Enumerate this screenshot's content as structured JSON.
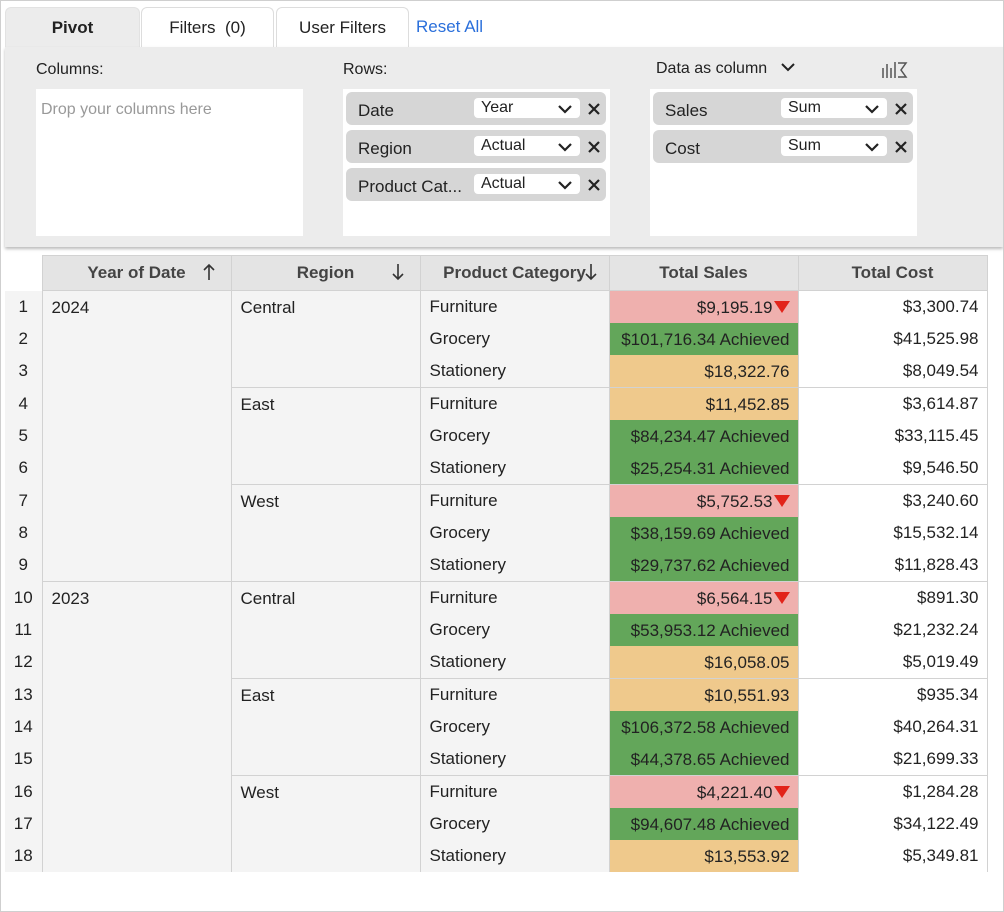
{
  "tabs": [
    "Pivot",
    "Filters  (0)",
    "User Filters"
  ],
  "reset": "Reset All",
  "config": {
    "columns_label": "Columns:",
    "columns_placeholder": "Drop your columns here",
    "rows_label": "Rows:",
    "rows": [
      {
        "field": "Date",
        "agg": "Year"
      },
      {
        "field": "Region",
        "agg": "Actual"
      },
      {
        "field": "Product Cat...",
        "agg": "Actual"
      }
    ],
    "values_label": "Data as column",
    "values": [
      {
        "field": "Sales",
        "agg": "Sum"
      },
      {
        "field": "Cost",
        "agg": "Sum"
      }
    ]
  },
  "table": {
    "headers": [
      "Year of Date",
      "Region",
      "Product Category",
      "Total Sales",
      "Total Cost"
    ],
    "rows": [
      {
        "n": "1",
        "year": "2024",
        "region": "Central",
        "category": "Furniture",
        "sales": "$9,195.19",
        "arrow": true,
        "color": "#efb0ae",
        "cost": "$3,300.74"
      },
      {
        "n": "2",
        "category": "Grocery",
        "sales": "$101,716.34",
        "status": "Achieved",
        "color": "#63a65a",
        "cost": "$41,525.98"
      },
      {
        "n": "3",
        "category": "Stationery",
        "sales": "$18,322.76",
        "color": "#efc98c",
        "cost": "$8,049.54"
      },
      {
        "n": "4",
        "region": "East",
        "category": "Furniture",
        "sales": "$11,452.85",
        "color": "#efc98c",
        "cost": "$3,614.87"
      },
      {
        "n": "5",
        "category": "Grocery",
        "sales": "$84,234.47",
        "status": "Achieved",
        "color": "#63a65a",
        "cost": "$33,115.45"
      },
      {
        "n": "6",
        "category": "Stationery",
        "sales": "$25,254.31",
        "status": "Achieved",
        "color": "#63a65a",
        "cost": "$9,546.50"
      },
      {
        "n": "7",
        "region": "West",
        "category": "Furniture",
        "sales": "$5,752.53",
        "arrow": true,
        "color": "#efb0ae",
        "cost": "$3,240.60"
      },
      {
        "n": "8",
        "category": "Grocery",
        "sales": "$38,159.69",
        "status": "Achieved",
        "color": "#63a65a",
        "cost": "$15,532.14"
      },
      {
        "n": "9",
        "category": "Stationery",
        "sales": "$29,737.62",
        "status": "Achieved",
        "color": "#63a65a",
        "cost": "$11,828.43"
      },
      {
        "n": "10",
        "year": "2023",
        "region": "Central",
        "category": "Furniture",
        "sales": "$6,564.15",
        "arrow": true,
        "color": "#efb0ae",
        "cost": "$891.30"
      },
      {
        "n": "11",
        "category": "Grocery",
        "sales": "$53,953.12",
        "status": "Achieved",
        "color": "#63a65a",
        "cost": "$21,232.24"
      },
      {
        "n": "12",
        "category": "Stationery",
        "sales": "$16,058.05",
        "color": "#efc98c",
        "cost": "$5,019.49"
      },
      {
        "n": "13",
        "region": "East",
        "category": "Furniture",
        "sales": "$10,551.93",
        "color": "#efc98c",
        "cost": "$935.34"
      },
      {
        "n": "14",
        "category": "Grocery",
        "sales": "$106,372.58",
        "status": "Achieved",
        "color": "#63a65a",
        "cost": "$40,264.31"
      },
      {
        "n": "15",
        "category": "Stationery",
        "sales": "$44,378.65",
        "status": "Achieved",
        "color": "#63a65a",
        "cost": "$21,699.33"
      },
      {
        "n": "16",
        "region": "West",
        "category": "Furniture",
        "sales": "$4,221.40",
        "arrow": true,
        "color": "#efb0ae",
        "cost": "$1,284.28"
      },
      {
        "n": "17",
        "category": "Grocery",
        "sales": "$94,607.48",
        "status": "Achieved",
        "color": "#63a65a",
        "cost": "$34,122.49"
      },
      {
        "n": "18",
        "category": "Stationery",
        "sales": "$13,553.92",
        "color": "#efc98c",
        "cost": "$5,349.81"
      }
    ]
  }
}
